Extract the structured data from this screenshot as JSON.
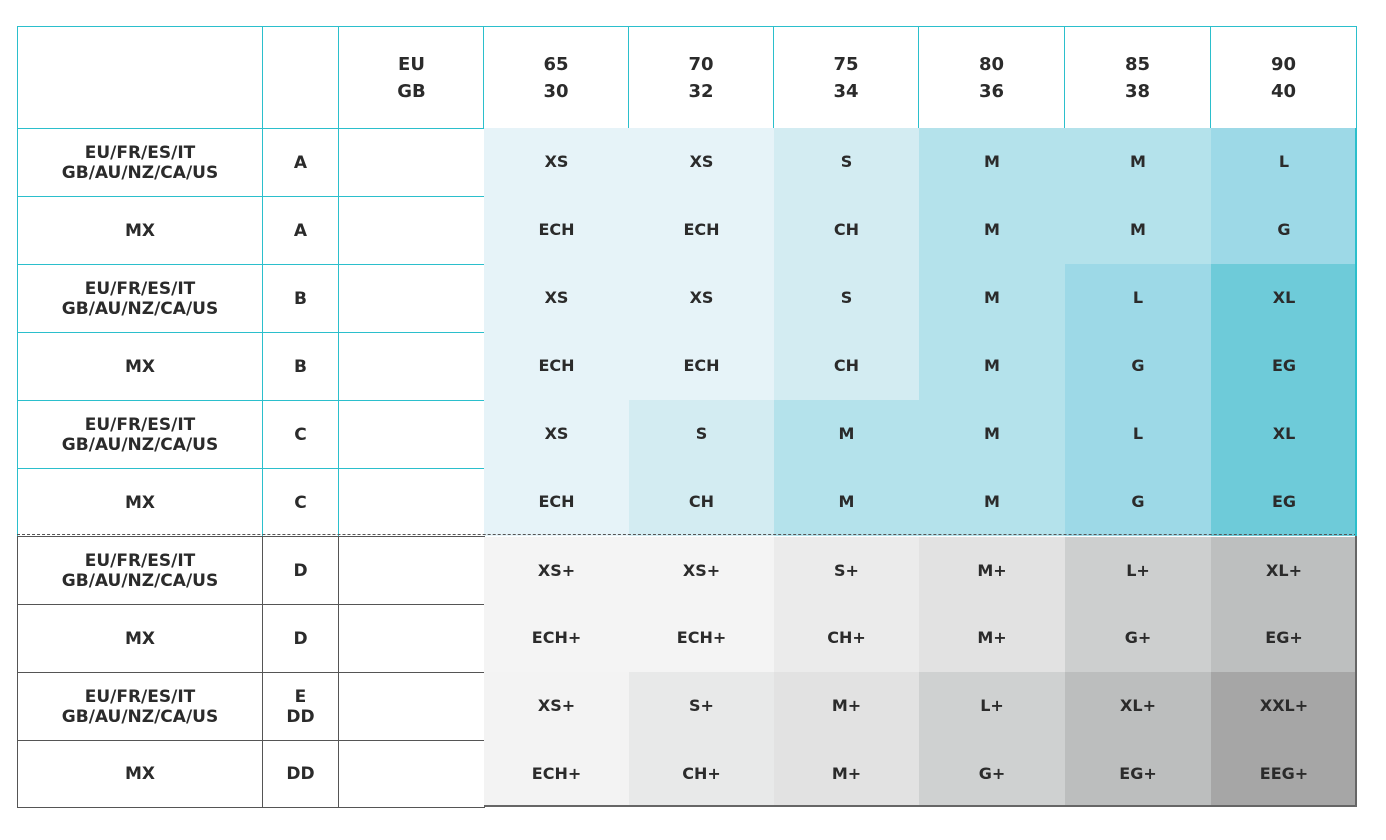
{
  "header": {
    "corner_1": "",
    "corner_2": "",
    "region_label": "EU\nGB",
    "band_sizes": [
      {
        "eu": "65",
        "gb": "30"
      },
      {
        "eu": "70",
        "gb": "32"
      },
      {
        "eu": "75",
        "gb": "34"
      },
      {
        "eu": "80",
        "gb": "36"
      },
      {
        "eu": "85",
        "gb": "38"
      },
      {
        "eu": "90",
        "gb": "40"
      }
    ]
  },
  "rows": [
    {
      "region": "EU/FR/ES/IT\nGB/AU/NZ/CA/US",
      "cup": "A",
      "sizes": [
        "XS",
        "XS",
        "S",
        "M",
        "M",
        "L"
      ],
      "colors": [
        "#e6f3f8",
        "#e6f3f8",
        "#d3ecf2",
        "#b4e2eb",
        "#b4e2eb",
        "#9dd9e7"
      ]
    },
    {
      "region": "MX",
      "cup": "A",
      "sizes": [
        "ECH",
        "ECH",
        "CH",
        "M",
        "M",
        "G"
      ],
      "colors": [
        "#e6f3f8",
        "#e6f3f8",
        "#d3ecf2",
        "#b4e2eb",
        "#b4e2eb",
        "#9dd9e7"
      ]
    },
    {
      "region": "EU/FR/ES/IT\nGB/AU/NZ/CA/US",
      "cup": "B",
      "sizes": [
        "XS",
        "XS",
        "S",
        "M",
        "L",
        "XL"
      ],
      "colors": [
        "#e6f3f8",
        "#e6f3f8",
        "#d3ecf2",
        "#b4e2eb",
        "#9dd9e7",
        "#6ecbd9"
      ]
    },
    {
      "region": "MX",
      "cup": "B",
      "sizes": [
        "ECH",
        "ECH",
        "CH",
        "M",
        "G",
        "EG"
      ],
      "colors": [
        "#e6f3f8",
        "#e6f3f8",
        "#d3ecf2",
        "#b4e2eb",
        "#9dd9e7",
        "#6ecbd9"
      ]
    },
    {
      "region": "EU/FR/ES/IT\nGB/AU/NZ/CA/US",
      "cup": "C",
      "sizes": [
        "XS",
        "S",
        "M",
        "M",
        "L",
        "XL"
      ],
      "colors": [
        "#e6f3f8",
        "#d3ecf2",
        "#b4e2eb",
        "#b4e2eb",
        "#9dd9e7",
        "#6ecbd9"
      ]
    },
    {
      "region": "MX",
      "cup": "C",
      "sizes": [
        "ECH",
        "CH",
        "M",
        "M",
        "G",
        "EG"
      ],
      "colors": [
        "#e6f3f8",
        "#d3ecf2",
        "#b4e2eb",
        "#b4e2eb",
        "#9dd9e7",
        "#6ecbd9"
      ]
    },
    {
      "region": "EU/FR/ES/IT\nGB/AU/NZ/CA/US",
      "cup": "D",
      "sizes": [
        "XS+",
        "XS+",
        "S+",
        "M+",
        "L+",
        "XL+"
      ],
      "colors": [
        "#f4f4f4",
        "#f4f4f4",
        "#ebebeb",
        "#e2e2e2",
        "#cdcfcf",
        "#bdbfbf"
      ]
    },
    {
      "region": "MX",
      "cup": "D",
      "sizes": [
        "ECH+",
        "ECH+",
        "CH+",
        "M+",
        "G+",
        "EG+"
      ],
      "colors": [
        "#f4f4f4",
        "#f4f4f4",
        "#ebebeb",
        "#e2e2e2",
        "#cdcfcf",
        "#bdbfbf"
      ]
    },
    {
      "region": "EU/FR/ES/IT\nGB/AU/NZ/CA/US",
      "cup": "E\nDD",
      "sizes": [
        "XS+",
        "S+",
        "M+",
        "L+",
        "XL+",
        "XXL+"
      ],
      "colors": [
        "#f3f3f3",
        "#e8e9e9",
        "#e2e2e2",
        "#cfd1d1",
        "#bcbebe",
        "#a6a6a6"
      ]
    },
    {
      "region": "MX",
      "cup": "DD",
      "sizes": [
        "ECH+",
        "CH+",
        "M+",
        "G+",
        "EG+",
        "EEG+"
      ],
      "colors": [
        "#f3f3f3",
        "#e8e9e9",
        "#e2e2e2",
        "#cfd1d1",
        "#bcbebe",
        "#a6a6a6"
      ]
    }
  ]
}
